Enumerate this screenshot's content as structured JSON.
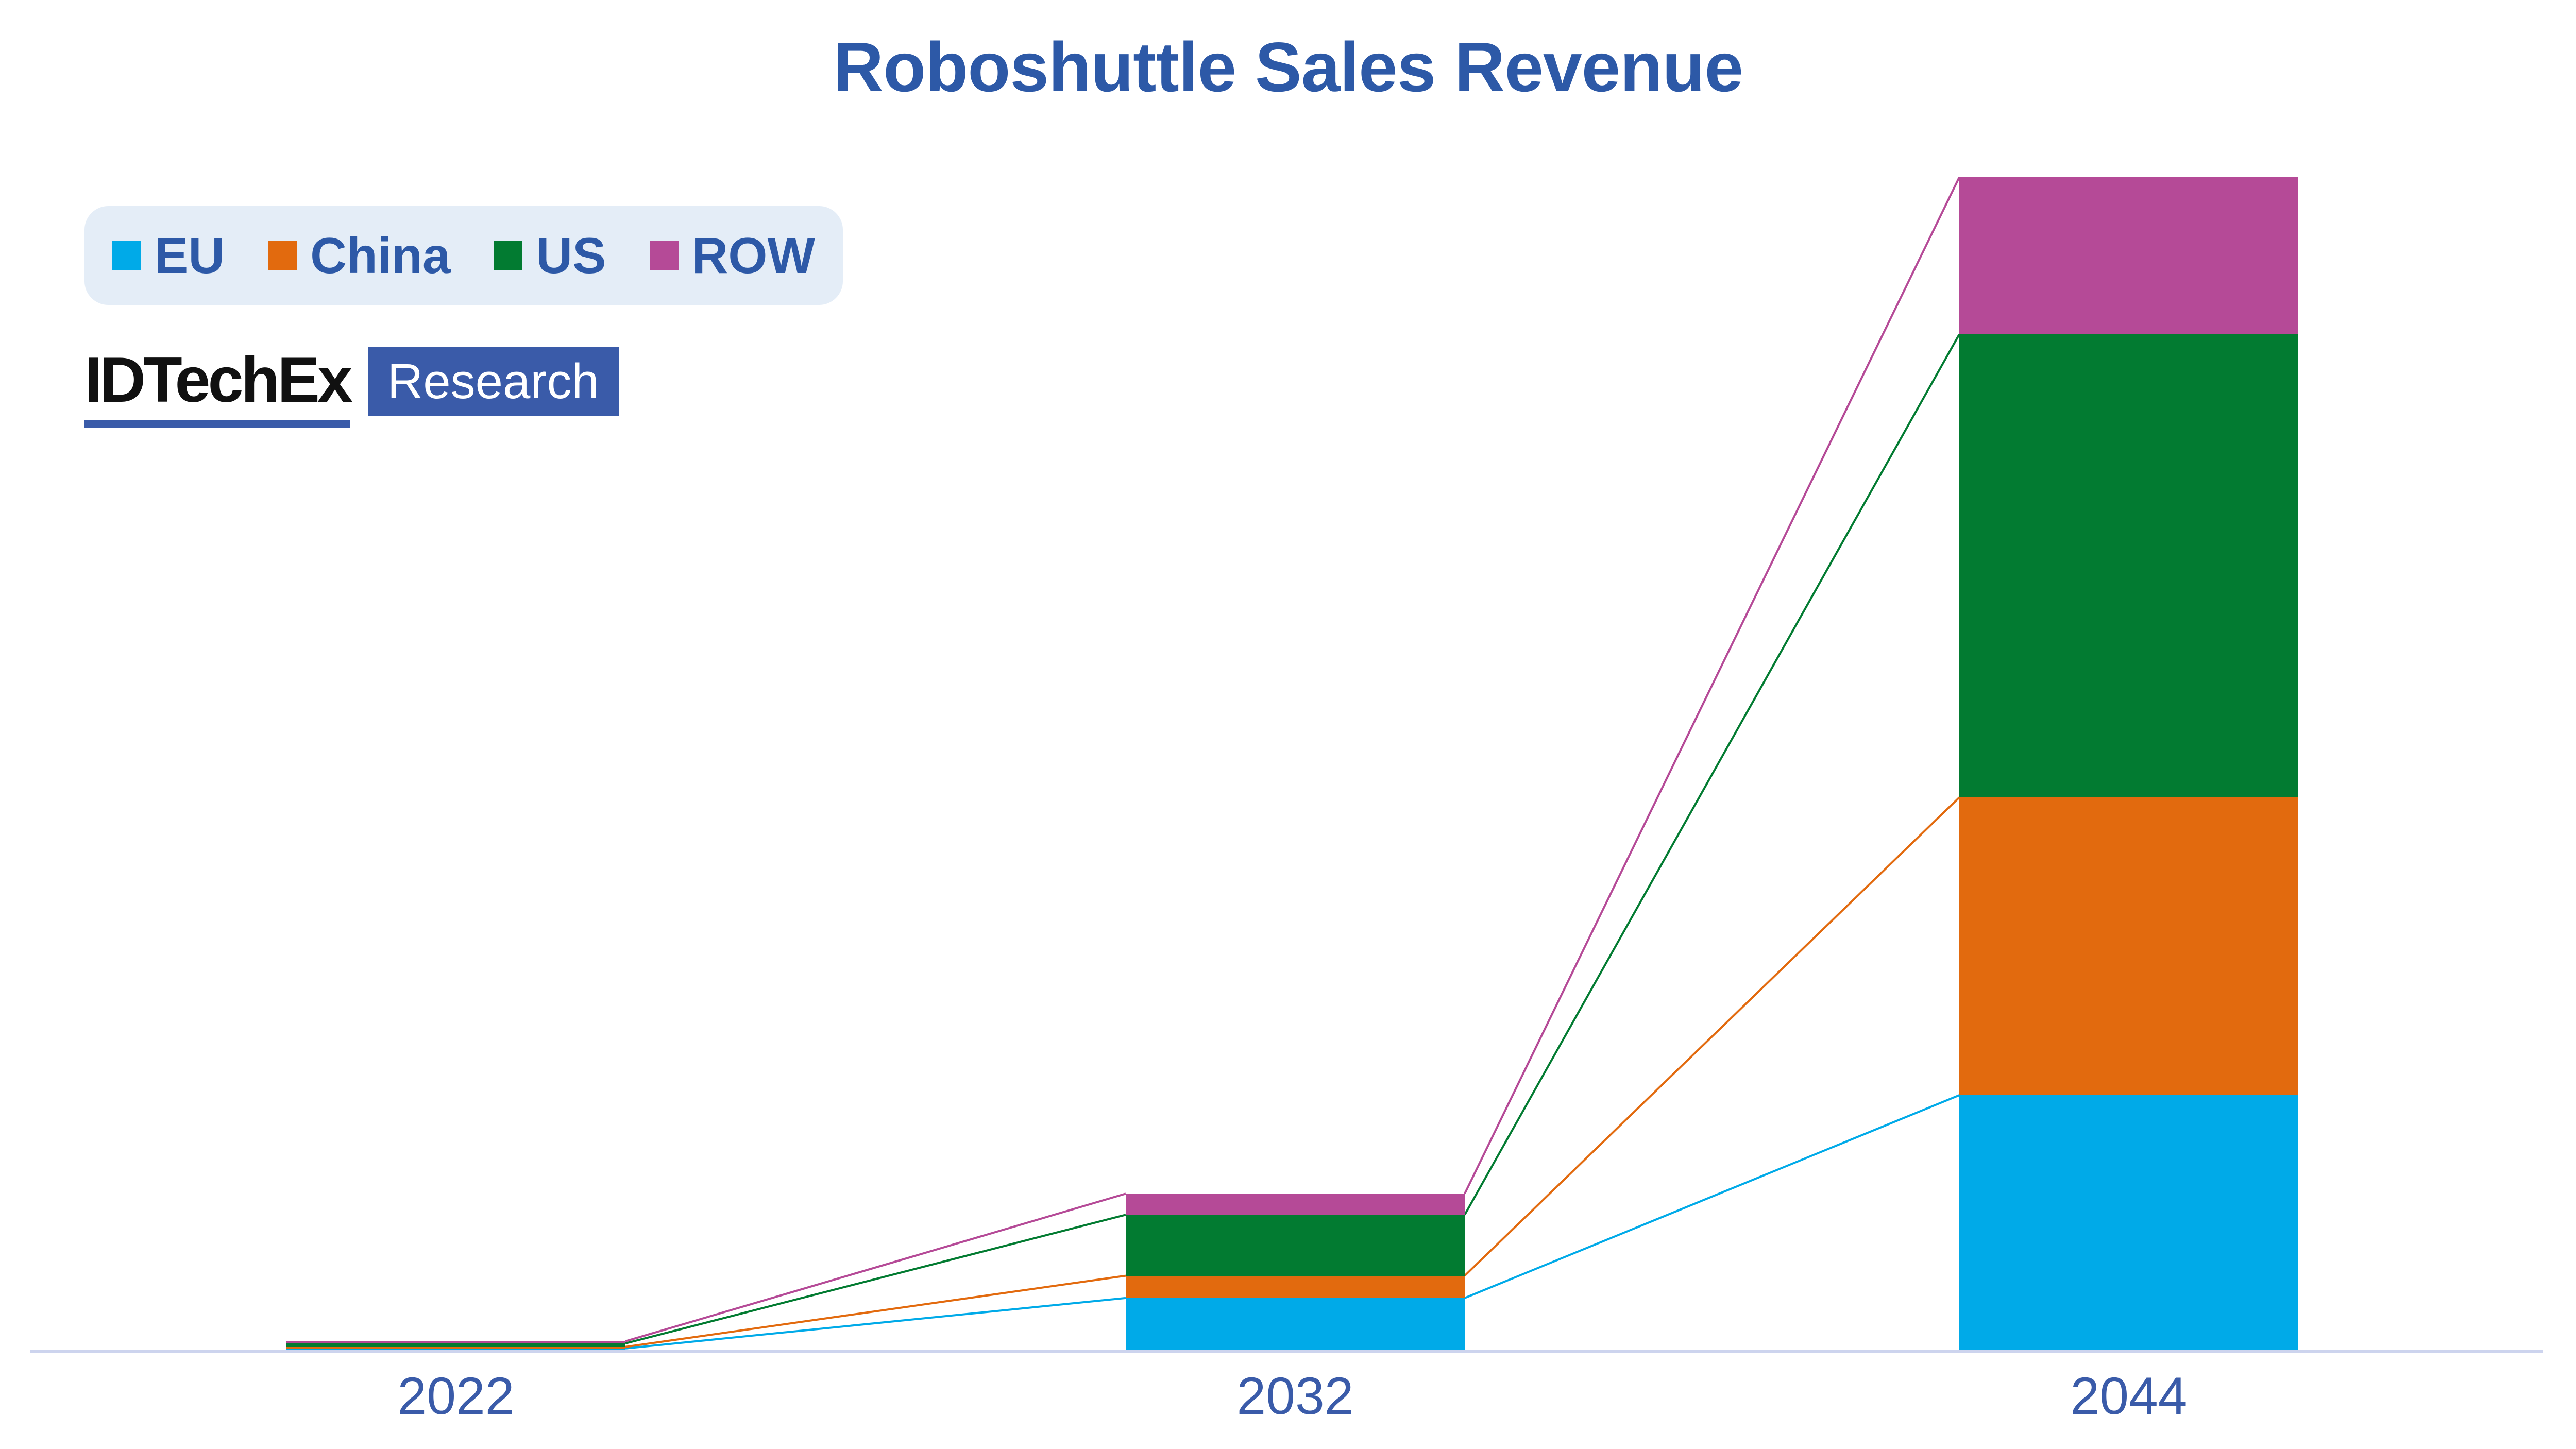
{
  "title": "Roboshuttle Sales Revenue",
  "logo": {
    "brand": "IDTechEx",
    "suffix": "Research"
  },
  "legend": {
    "position": "top-left",
    "items": [
      {
        "label": "EU",
        "color": "#00AAE8"
      },
      {
        "label": "China",
        "color": "#E26A0E"
      },
      {
        "label": "US",
        "color": "#027B31"
      },
      {
        "label": "ROW",
        "color": "#B54A97"
      }
    ]
  },
  "colors": {
    "title": "#2D59A7",
    "axis_label": "#3A5BA9",
    "axis_line": "#CDD4EE",
    "legend_bg": "#E4EDF7",
    "logo_blue": "#3A5BA9",
    "logo_black": "#111111",
    "background": "#FFFFFF"
  },
  "chart_data": {
    "type": "bar",
    "stacked": true,
    "title": "Roboshuttle Sales Revenue",
    "xlabel": "",
    "ylabel": "",
    "categories": [
      "2022",
      "2032",
      "2044"
    ],
    "series": [
      {
        "name": "EU",
        "color": "#00AAE8",
        "values": [
          0.1,
          4.4,
          21.7
        ]
      },
      {
        "name": "China",
        "color": "#E26A0E",
        "values": [
          0.13,
          1.9,
          25.4
        ]
      },
      {
        "name": "US",
        "color": "#027B31",
        "values": [
          0.3,
          5.2,
          39.5
        ]
      },
      {
        "name": "ROW",
        "color": "#B54A97",
        "values": [
          0.18,
          1.8,
          13.4
        ]
      }
    ],
    "totals": [
      0.71,
      13.3,
      100.0
    ],
    "ylim": [
      0,
      100
    ],
    "grid": false,
    "y_axis_visible": false,
    "legend_position": "top-left",
    "connector_lines_between_stack_tops": true,
    "value_note": "No y-axis shown in figure; values are relative units estimated from segment heights, normalized so the 2044 total = 100."
  }
}
